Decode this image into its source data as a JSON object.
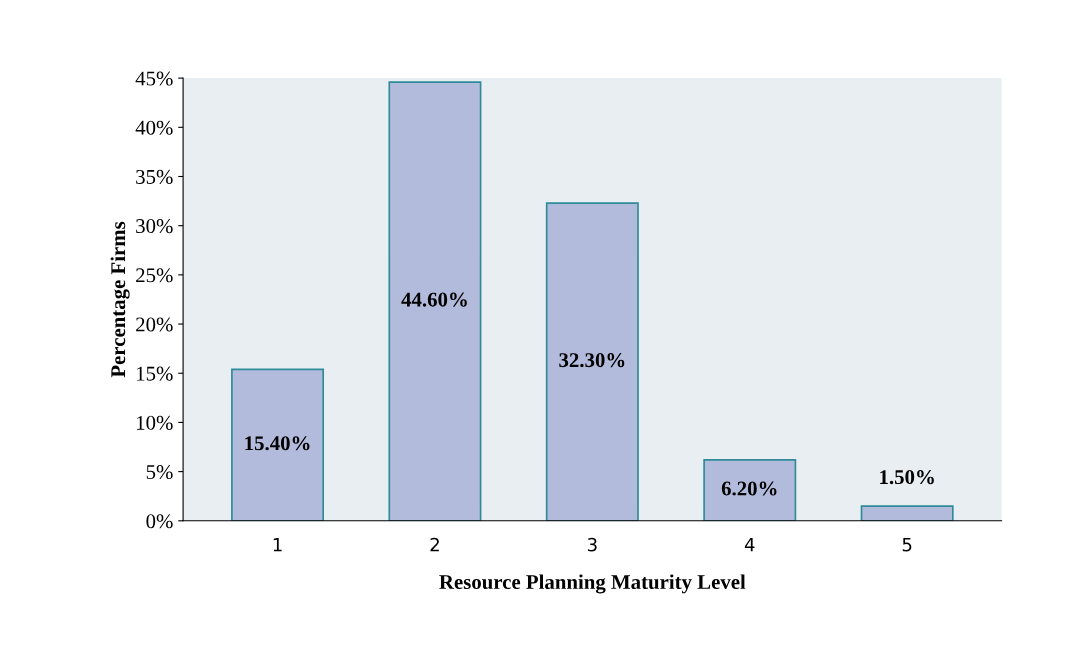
{
  "chart_data": {
    "type": "bar",
    "xlabel": "Resource Planning Maturity Level",
    "ylabel": "Percentage Firms",
    "categories": [
      "1",
      "2",
      "3",
      "4",
      "5"
    ],
    "values": [
      15.4,
      44.6,
      32.3,
      6.2,
      1.5
    ],
    "value_labels": [
      "15.40%",
      "44.60%",
      "32.30%",
      "6.20%",
      "1.50%"
    ],
    "color": "#b3bbdc",
    "ylim": [
      0,
      45
    ],
    "yticks": [
      {
        "value": 0,
        "label": "0%"
      },
      {
        "value": 5,
        "label": "5%"
      },
      {
        "value": 10,
        "label": "10%"
      },
      {
        "value": 15,
        "label": "15%"
      },
      {
        "value": 20,
        "label": "20%"
      },
      {
        "value": 25,
        "label": "25%"
      },
      {
        "value": 30,
        "label": "30%"
      },
      {
        "value": 35,
        "label": "35%"
      },
      {
        "value": 40,
        "label": "40%"
      },
      {
        "value": 45,
        "label": "45%"
      }
    ],
    "grid": false,
    "legend": false
  }
}
